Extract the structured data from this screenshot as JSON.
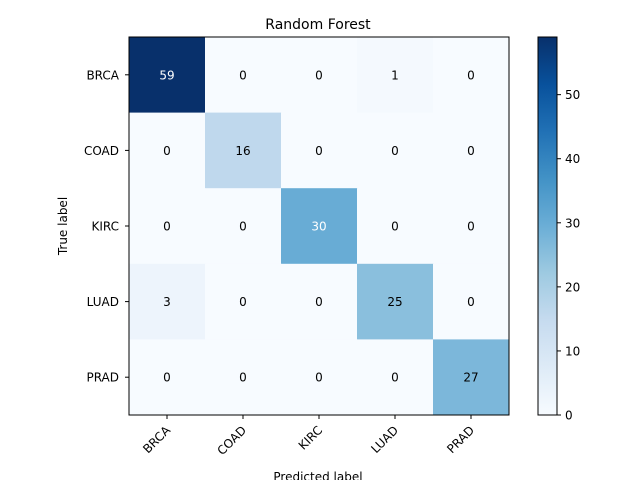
{
  "chart_data": {
    "type": "heatmap",
    "title": "Random Forest",
    "xlabel": "Predicted label",
    "ylabel": "True label",
    "x_categories": [
      "BRCA",
      "COAD",
      "KIRC",
      "LUAD",
      "PRAD"
    ],
    "y_categories": [
      "BRCA",
      "COAD",
      "KIRC",
      "LUAD",
      "PRAD"
    ],
    "values": [
      [
        59,
        0,
        0,
        1,
        0
      ],
      [
        0,
        16,
        0,
        0,
        0
      ],
      [
        0,
        0,
        30,
        0,
        0
      ],
      [
        3,
        0,
        0,
        25,
        0
      ],
      [
        0,
        0,
        0,
        0,
        27
      ]
    ],
    "colorbar": {
      "min": 0,
      "max": 59,
      "ticks": [
        0,
        10,
        20,
        30,
        40,
        50
      ]
    },
    "colormap": "Blues",
    "grid": false
  }
}
